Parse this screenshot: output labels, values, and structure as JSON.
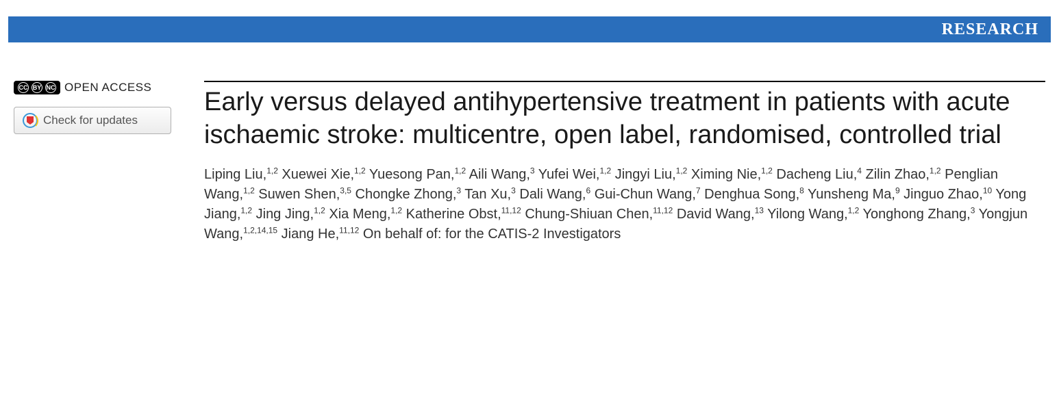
{
  "banner": {
    "label": "RESEARCH",
    "bg_color": "#2a6ebb",
    "text_color": "#ffffff"
  },
  "sidebar": {
    "open_access_label": "OPEN ACCESS",
    "cc_glyphs": [
      "CC",
      "BY",
      "NC"
    ],
    "updates_label": "Check for updates"
  },
  "article": {
    "title": "Early versus delayed antihypertensive treatment in patients with acute ischaemic stroke: multicentre, open label, randomised, controlled trial",
    "authors": [
      {
        "name": "Liping Liu",
        "affil": "1,2"
      },
      {
        "name": "Xuewei Xie",
        "affil": "1,2"
      },
      {
        "name": "Yuesong Pan",
        "affil": "1,2"
      },
      {
        "name": "Aili Wang",
        "affil": "3"
      },
      {
        "name": "Yufei Wei",
        "affil": "1,2"
      },
      {
        "name": "Jingyi Liu",
        "affil": "1,2"
      },
      {
        "name": "Ximing Nie",
        "affil": "1,2"
      },
      {
        "name": "Dacheng Liu",
        "affil": "4"
      },
      {
        "name": "Zilin Zhao",
        "affil": "1,2"
      },
      {
        "name": "Penglian Wang",
        "affil": "1,2"
      },
      {
        "name": "Suwen Shen",
        "affil": "3,5"
      },
      {
        "name": "Chongke Zhong",
        "affil": "3"
      },
      {
        "name": "Tan Xu",
        "affil": "3"
      },
      {
        "name": "Dali Wang",
        "affil": "6"
      },
      {
        "name": "Gui-Chun Wang",
        "affil": "7"
      },
      {
        "name": "Denghua Song",
        "affil": "8"
      },
      {
        "name": "Yunsheng Ma",
        "affil": "9"
      },
      {
        "name": "Jinguo Zhao",
        "affil": "10"
      },
      {
        "name": "Yong Jiang",
        "affil": "1,2"
      },
      {
        "name": "Jing Jing",
        "affil": "1,2"
      },
      {
        "name": "Xia Meng",
        "affil": "1,2"
      },
      {
        "name": "Katherine Obst",
        "affil": "11,12"
      },
      {
        "name": "Chung-Shiuan Chen",
        "affil": "11,12"
      },
      {
        "name": "David Wang",
        "affil": "13"
      },
      {
        "name": "Yilong Wang",
        "affil": "1,2"
      },
      {
        "name": "Yonghong Zhang",
        "affil": "3"
      },
      {
        "name": "Yongjun Wang",
        "affil": "1,2,14,15"
      },
      {
        "name": "Jiang He",
        "affil": "11,12"
      }
    ],
    "behalf_text": "On behalf of: for the CATIS-2 Investigators"
  },
  "colors": {
    "banner_bg": "#2a6ebb",
    "rule": "#000000",
    "title_text": "#1a1a1a",
    "author_text": "#333333",
    "button_border": "#b0b0b0",
    "button_text": "#555555"
  }
}
